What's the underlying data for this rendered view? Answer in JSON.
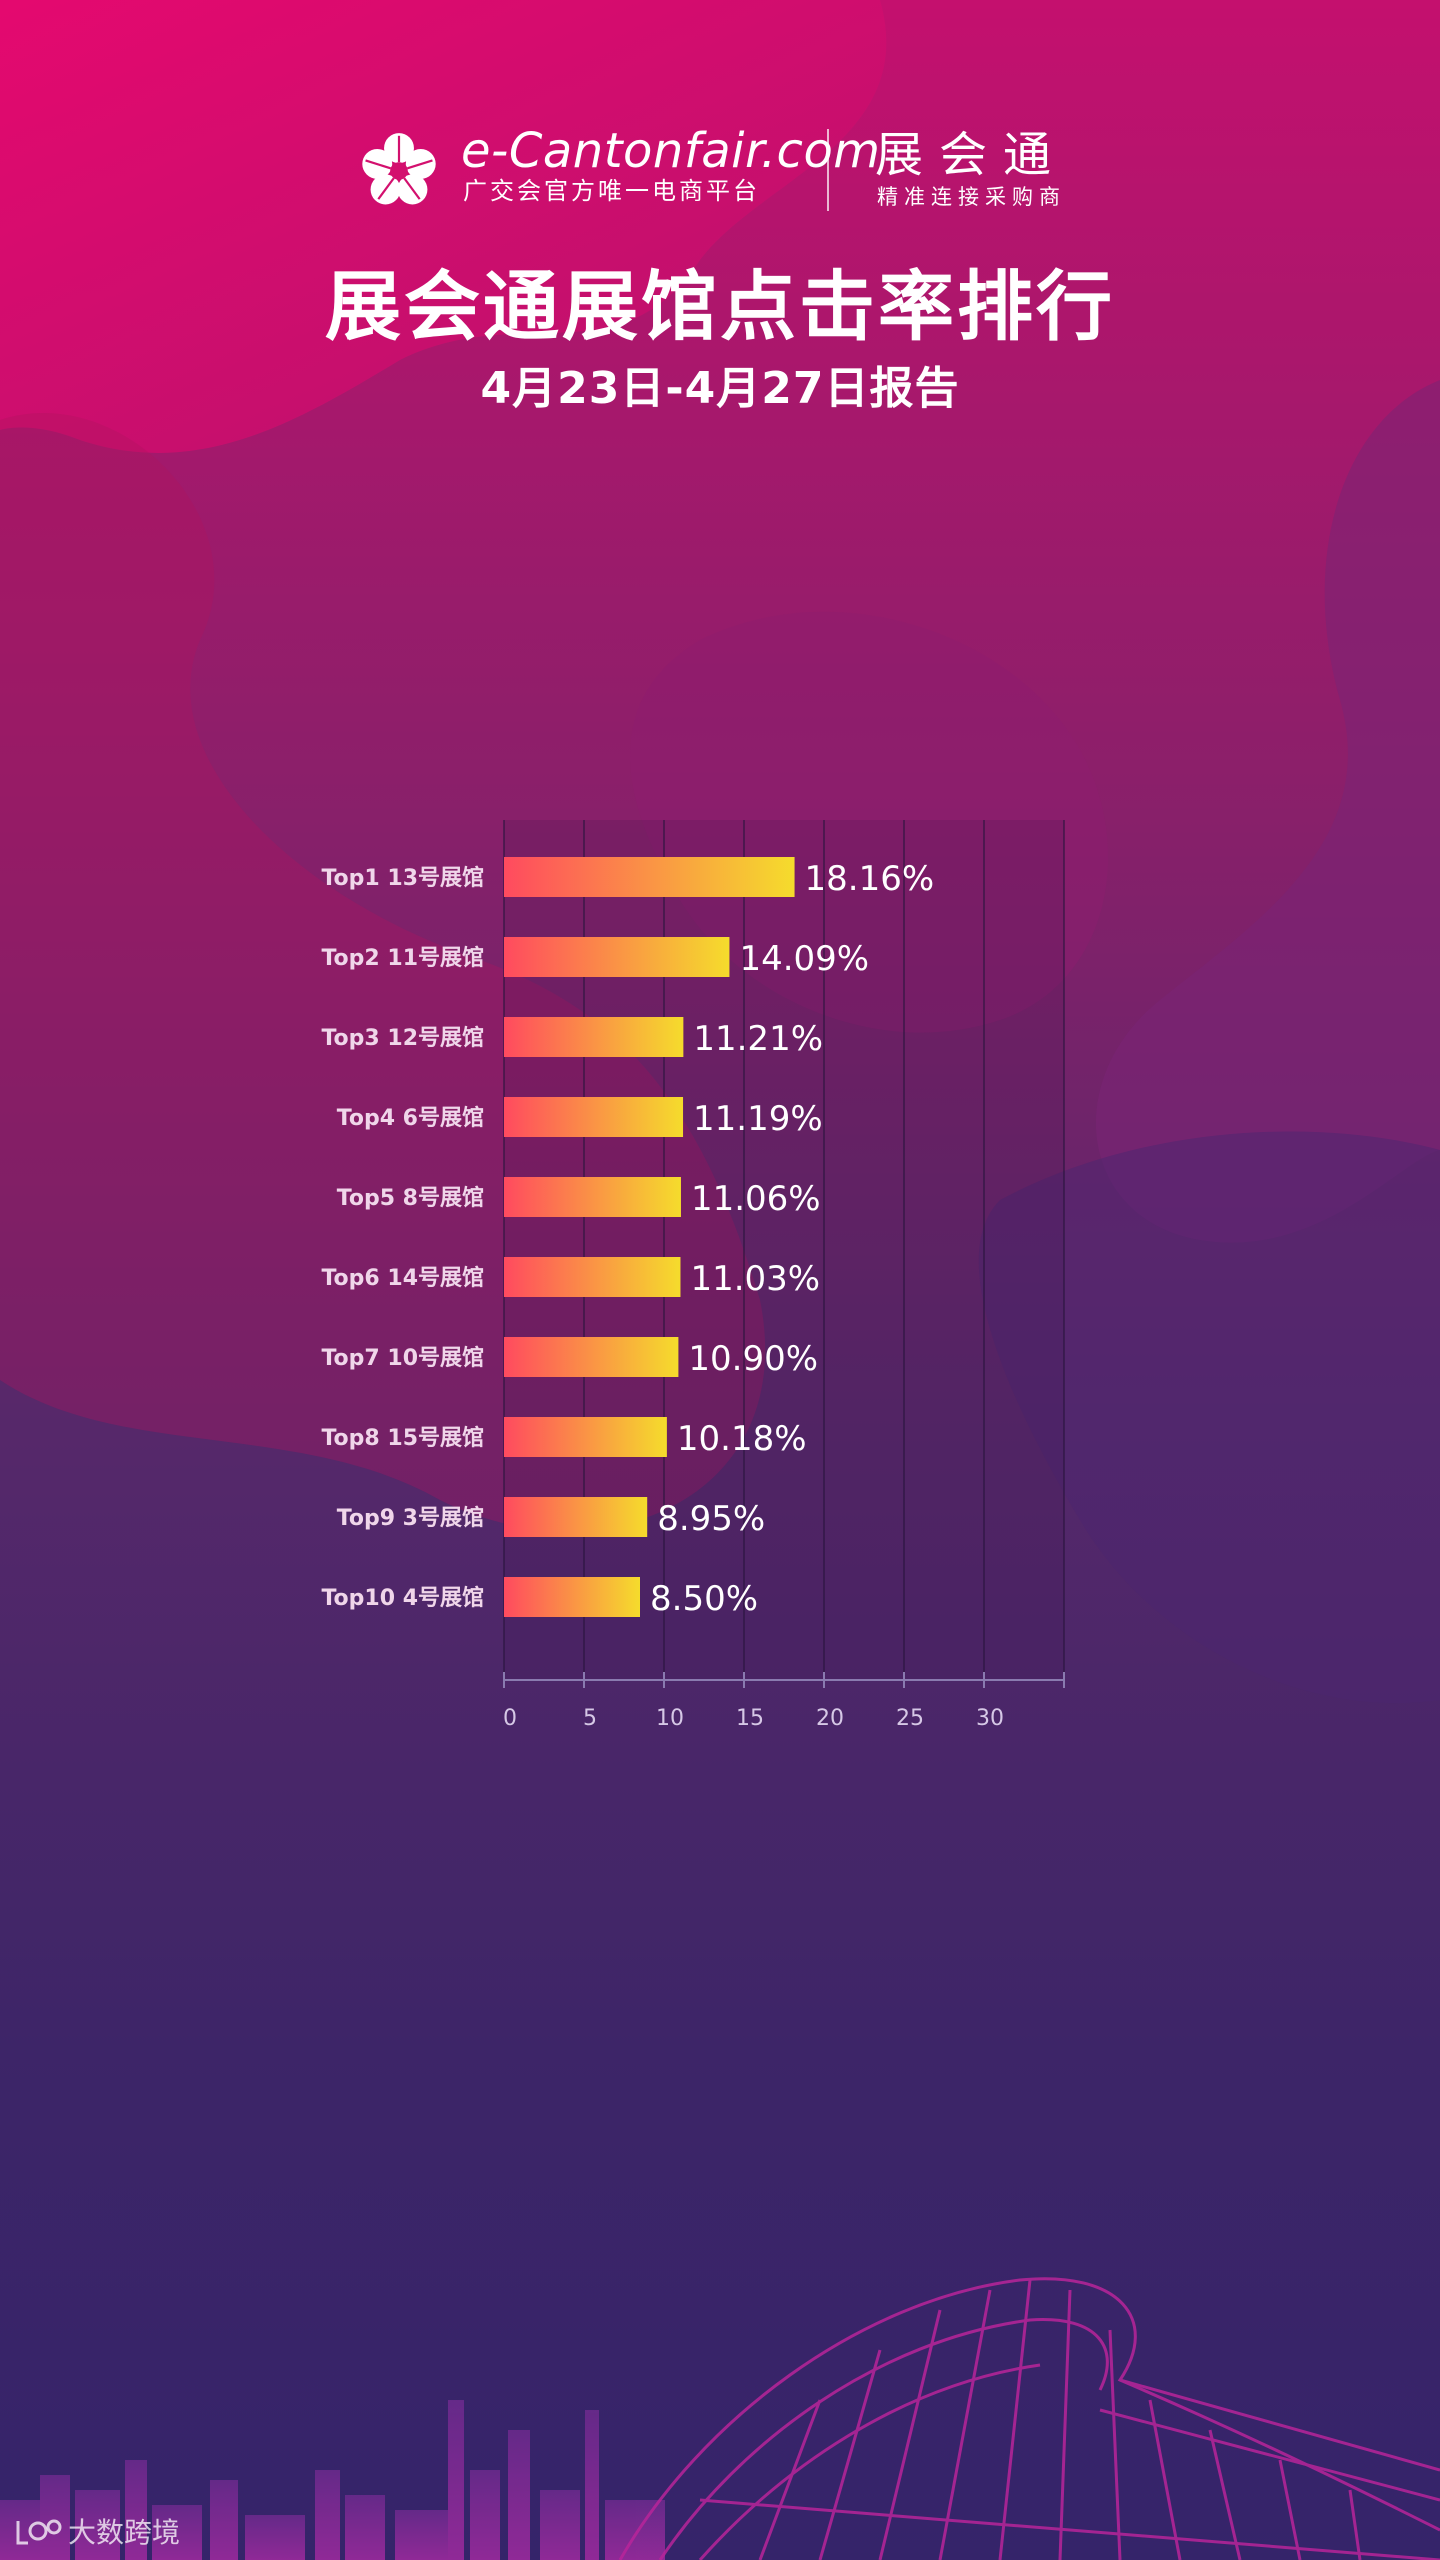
{
  "header": {
    "brand_en": "e-Cantonfair.com",
    "brand_cn": "广交会官方唯一电商平台",
    "product_name": "展会通",
    "product_tagline": "精准连接采购商"
  },
  "title": "展会通展馆点击率排行",
  "subtitle": "4月23日-4月27日报告",
  "chart_data": {
    "type": "bar",
    "orientation": "horizontal",
    "categories": [
      "Top1 13号展馆",
      "Top2 11号展馆",
      "Top3 12号展馆",
      "Top4 6号展馆",
      "Top5 8号展馆",
      "Top6 14号展馆",
      "Top7 10号展馆",
      "Top8 15号展馆",
      "Top9 3号展馆",
      "Top10 4号展馆"
    ],
    "values": [
      18.16,
      14.09,
      11.21,
      11.19,
      11.06,
      11.03,
      10.9,
      10.18,
      8.95,
      8.5
    ],
    "value_labels": [
      "18.16%",
      "14.09%",
      "11.21%",
      "11.19%",
      "11.06%",
      "11.03%",
      "10.90%",
      "10.18%",
      "8.95%",
      "8.50%"
    ],
    "xlim": [
      0,
      35
    ],
    "x_ticks": [
      "0",
      "5",
      "10",
      "15",
      "20",
      "25",
      "30"
    ],
    "grid": true,
    "bar_gradient": [
      "#ff4a5f",
      "#f5dc2c"
    ]
  },
  "watermark": "大数跨境",
  "icons": {
    "logo": "flower-logo-icon",
    "watermark": "ebrun-logo-icon"
  }
}
